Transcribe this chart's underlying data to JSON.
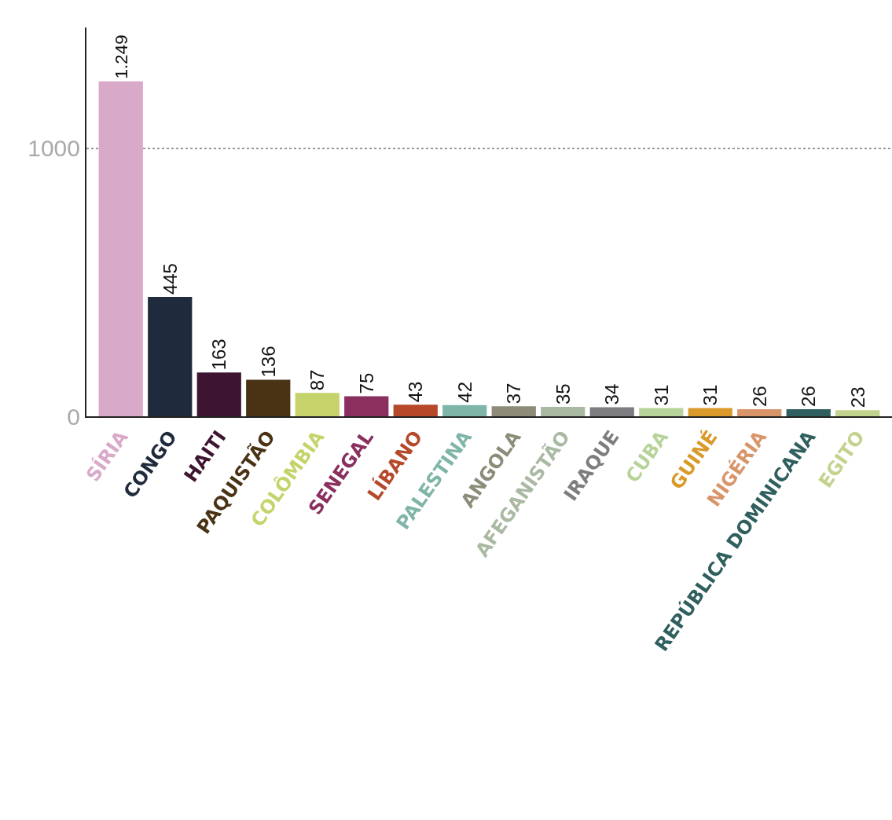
{
  "chart_data": {
    "type": "bar",
    "categories": [
      "SÍRIA",
      "CONGO",
      "HAITI",
      "PAQUISTÃO",
      "COLÔMBIA",
      "SENEGAL",
      "LÍBANO",
      "PALESTINA",
      "ANGOLA",
      "AFEGANISTÃO",
      "IRAQUE",
      "CUBA",
      "GUINÉ",
      "NIGÉRIA",
      "REPÚBLICA DOMINICANA",
      "EGITO"
    ],
    "values": [
      1249,
      445,
      163,
      136,
      87,
      75,
      43,
      42,
      37,
      35,
      34,
      31,
      31,
      26,
      26,
      23
    ],
    "value_labels": [
      "1.249",
      "445",
      "163",
      "136",
      "87",
      "75",
      "43",
      "42",
      "37",
      "35",
      "34",
      "31",
      "31",
      "26",
      "26",
      "23"
    ],
    "colors": [
      "#d8a9c9",
      "#1f2a3c",
      "#3e1530",
      "#4a3215",
      "#c5d36a",
      "#8a2f5e",
      "#b5492a",
      "#7fb5a8",
      "#8c8c78",
      "#a9b9a2",
      "#7d7d80",
      "#b7d39a",
      "#d99a2a",
      "#d9956a",
      "#2f5f5e",
      "#c2d38e"
    ],
    "ylim": [
      0,
      1450
    ],
    "yticks": [
      0,
      1000
    ],
    "grid": "y",
    "legend": false
  }
}
